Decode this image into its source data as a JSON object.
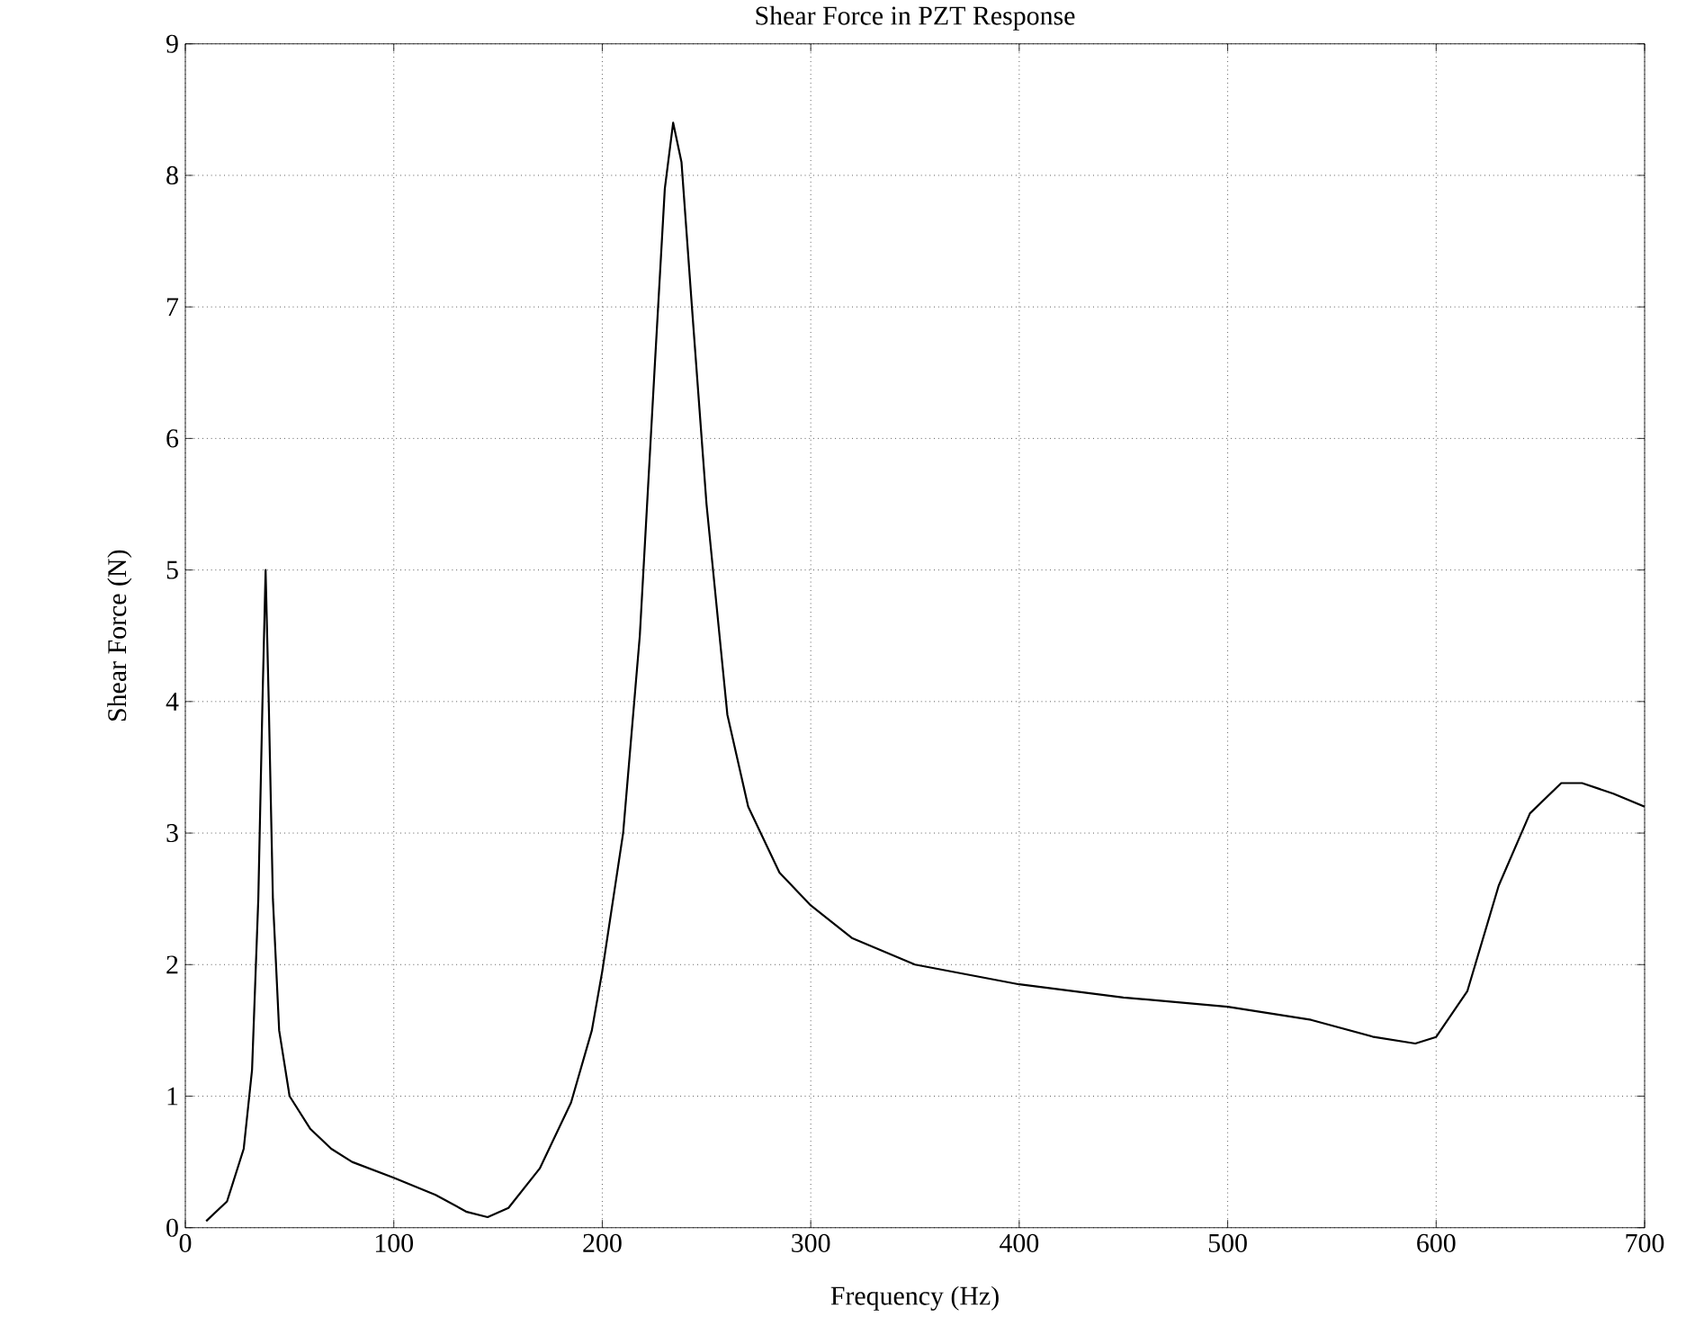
{
  "chart_data": {
    "type": "line",
    "title": "Shear Force in PZT Response",
    "xlabel": "Frequency (Hz)",
    "ylabel": "Shear Force (N)",
    "xlim": [
      0,
      700
    ],
    "ylim": [
      0,
      9
    ],
    "xticks": [
      0,
      100,
      200,
      300,
      400,
      500,
      600,
      700
    ],
    "yticks": [
      0,
      1,
      2,
      3,
      4,
      5,
      6,
      7,
      8,
      9
    ],
    "grid": true,
    "line_style": "solid",
    "series": [
      {
        "color": "#000000",
        "x": [
          10,
          20,
          28,
          32,
          35,
          37,
          38.5,
          40,
          42,
          45,
          50,
          60,
          70,
          80,
          100,
          120,
          135,
          145,
          155,
          170,
          185,
          195,
          200,
          210,
          218,
          225,
          230,
          234,
          238,
          243,
          250,
          260,
          270,
          285,
          300,
          320,
          350,
          400,
          450,
          500,
          540,
          570,
          590,
          600,
          615,
          630,
          645,
          660,
          670,
          685,
          700
        ],
        "values": [
          0.05,
          0.2,
          0.6,
          1.2,
          2.5,
          4.0,
          5.0,
          4.0,
          2.5,
          1.5,
          1.0,
          0.75,
          0.6,
          0.5,
          0.38,
          0.25,
          0.12,
          0.08,
          0.15,
          0.45,
          0.95,
          1.5,
          1.95,
          3.0,
          4.5,
          6.5,
          7.9,
          8.4,
          8.1,
          7.0,
          5.5,
          3.9,
          3.2,
          2.7,
          2.45,
          2.2,
          2.0,
          1.85,
          1.75,
          1.68,
          1.58,
          1.45,
          1.4,
          1.45,
          1.8,
          2.6,
          3.15,
          3.38,
          3.38,
          3.3,
          3.2
        ]
      }
    ]
  }
}
